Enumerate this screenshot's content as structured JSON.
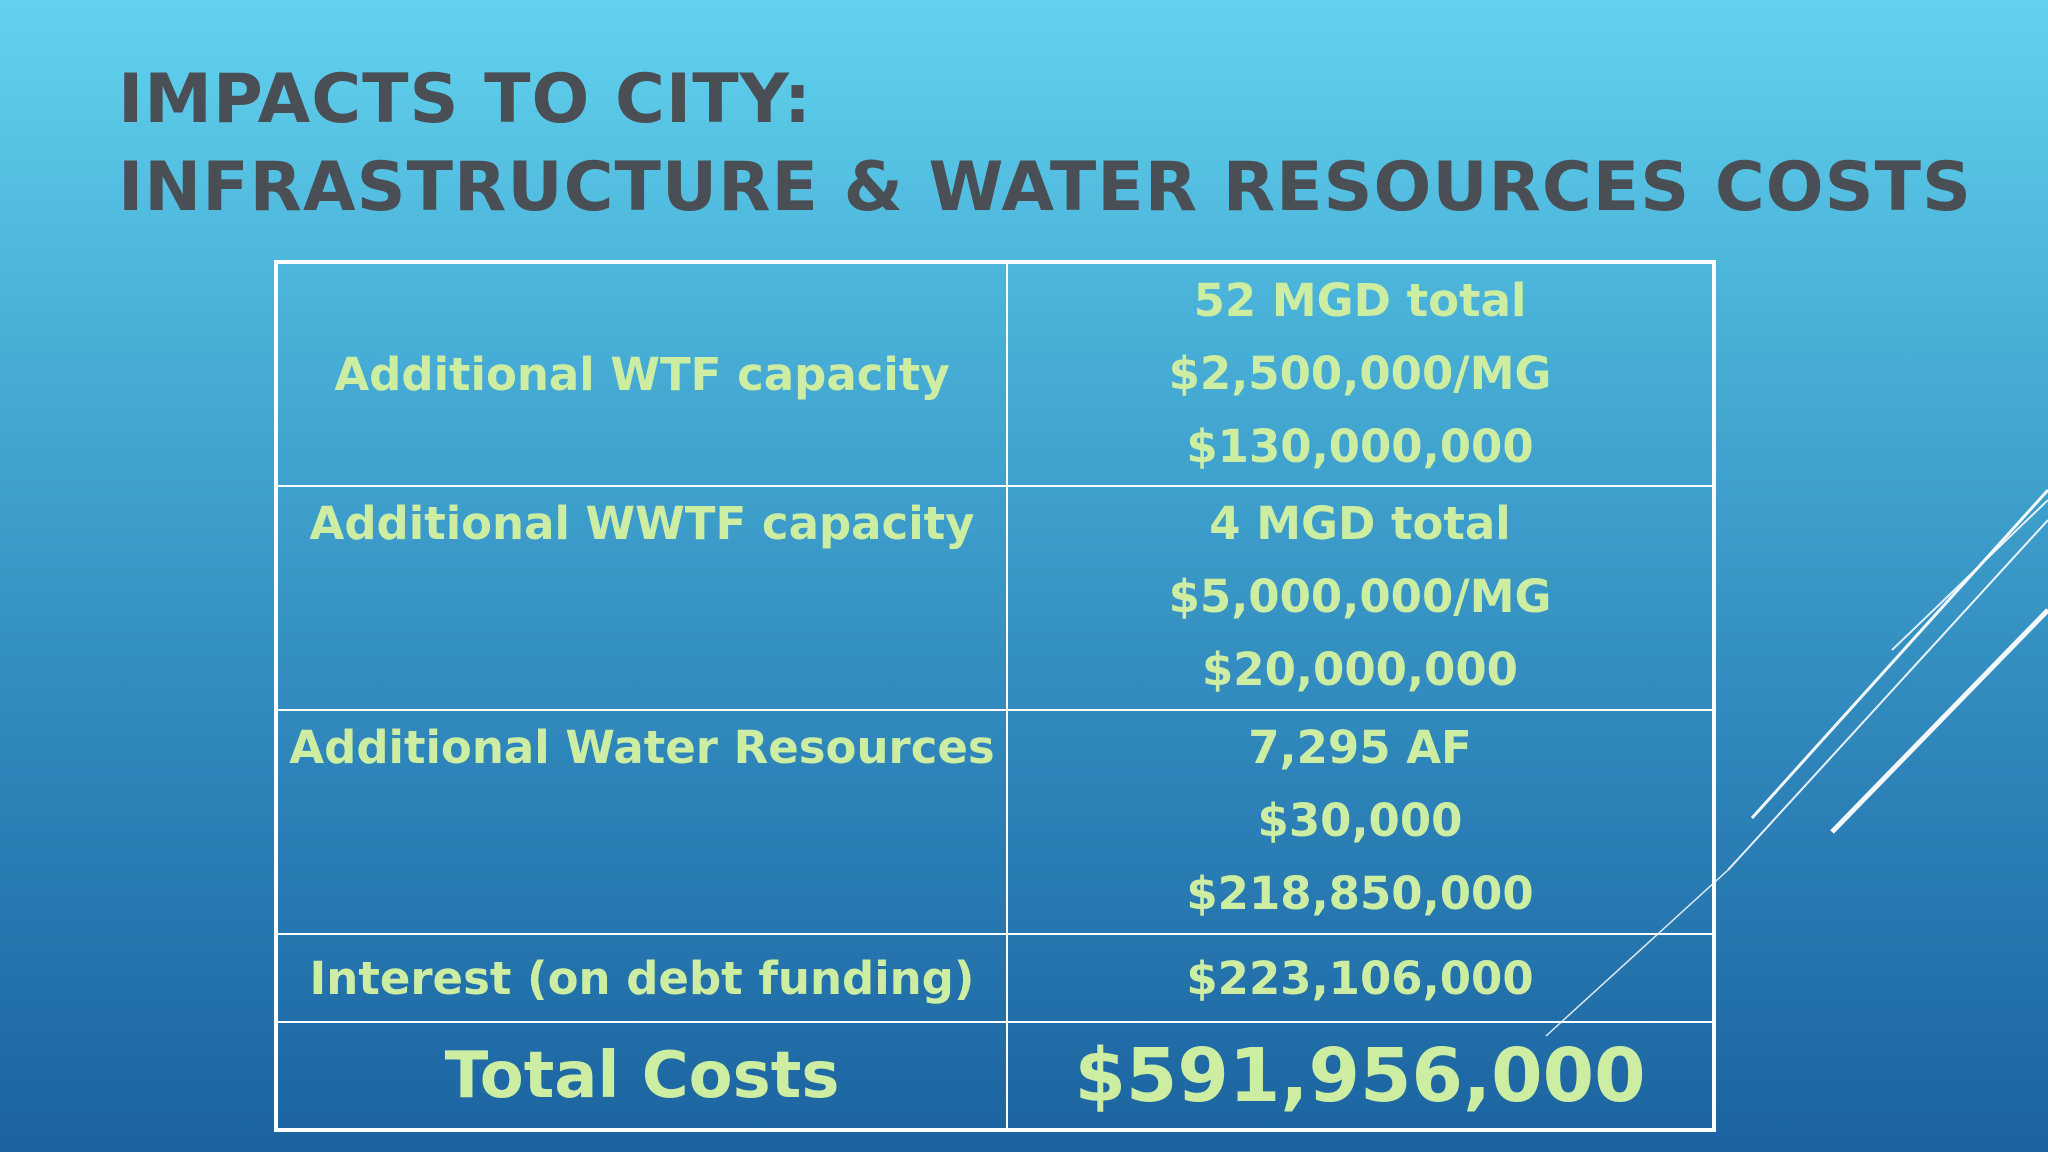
{
  "slide": {
    "title_line1": "IMPACTS TO CITY:",
    "title_line2": "INFRASTRUCTURE & WATER RESOURCES COSTS"
  },
  "table": {
    "rows": [
      {
        "item": "Additional WTF capacity",
        "details": [
          "52 MGD total",
          "$2,500,000/MG",
          "$130,000,000"
        ]
      },
      {
        "item": "Additional WWTF capacity",
        "details": [
          "4 MGD total",
          "$5,000,000/MG",
          "$20,000,000"
        ]
      },
      {
        "item": "Additional Water Resources",
        "details": [
          "7,295 AF",
          "$30,000",
          "$218,850,000"
        ]
      },
      {
        "item": "Interest (on debt funding)",
        "details": [
          "$223,106,000"
        ]
      }
    ],
    "total": {
      "label": "Total Costs",
      "value": "$591,956,000"
    }
  },
  "colors": {
    "background_top": "#62d2ee",
    "background_bottom": "#1b63a0",
    "title": "#4a4f55",
    "table_text": "#cdeea2",
    "table_border": "#ffffff"
  }
}
